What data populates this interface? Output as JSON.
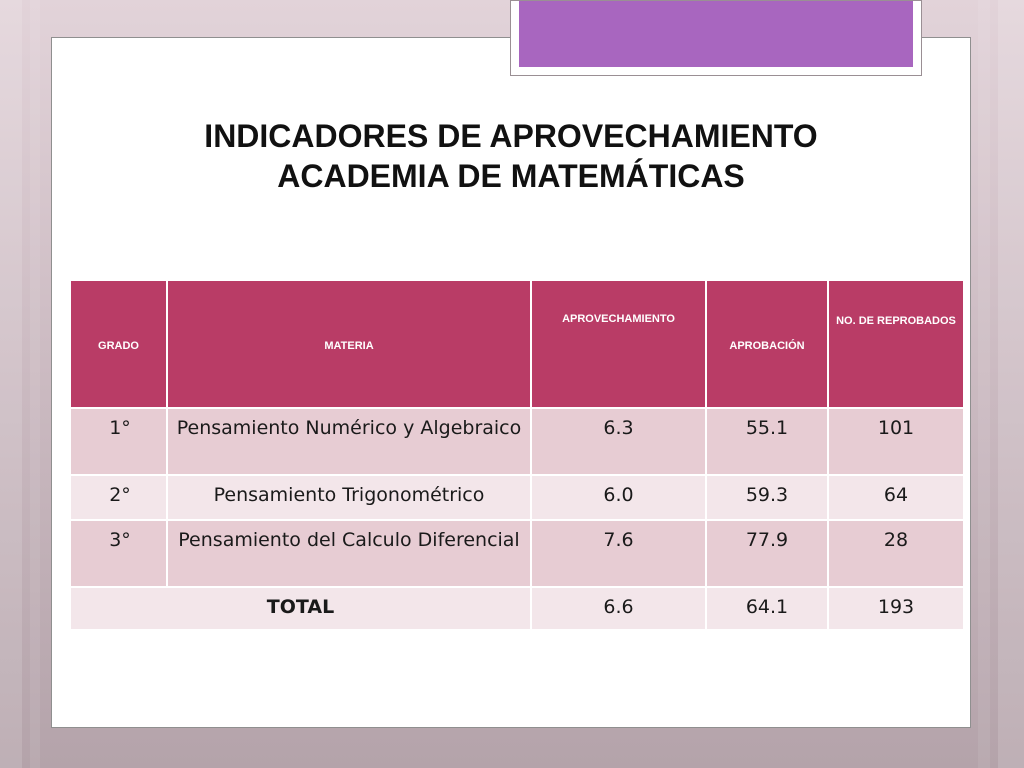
{
  "title": {
    "line1": "INDICADORES DE APROVECHAMIENTO",
    "line2": "ACADEMIA DE MATEMÁTICAS"
  },
  "table": {
    "headers": [
      "GRADO",
      "MATERIA",
      "APROVECHAMIENTO",
      "APROBACIÓN",
      "NO. DE REPROBADOS"
    ],
    "rows": [
      [
        "1°",
        "Pensamiento Numérico y Algebraico",
        "6.3",
        "55.1",
        "101"
      ],
      [
        "2°",
        "Pensamiento Trigonométrico",
        "6.0",
        "59.3",
        "64"
      ],
      [
        "3°",
        "Pensamiento del Calculo Diferencial",
        "7.6",
        "77.9",
        "28"
      ]
    ],
    "total": {
      "label": "TOTAL",
      "aprovechamiento": "6.6",
      "aprobacion": "64.1",
      "reprobados": "193"
    }
  },
  "colors": {
    "header_bg": "#b93c66",
    "row_odd": "#e7ccd3",
    "row_even": "#f3e6ea",
    "accent": "#a866bf"
  }
}
